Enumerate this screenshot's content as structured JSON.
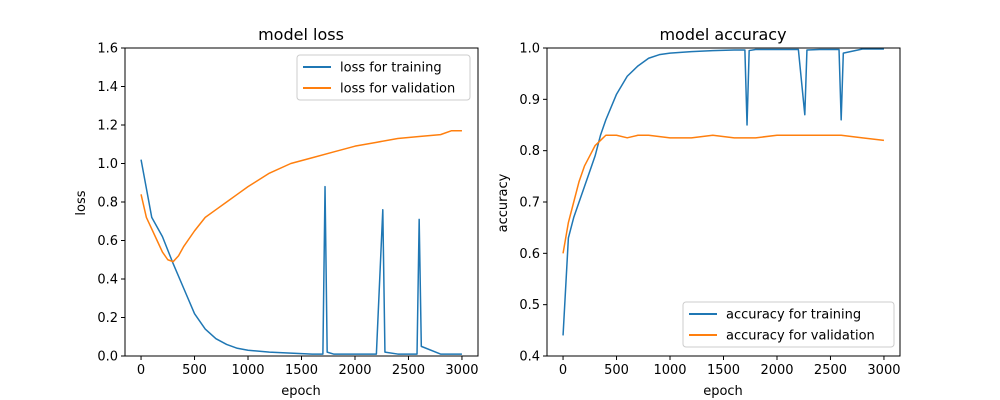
{
  "chart_data": [
    {
      "type": "line",
      "title": "model loss",
      "xlabel": "epoch",
      "ylabel": "loss",
      "xlim": [
        -150,
        3150
      ],
      "ylim": [
        0.0,
        1.6
      ],
      "xticks": [
        0,
        500,
        1000,
        1500,
        2000,
        2500,
        3000
      ],
      "xtick_labels": [
        "0",
        "500",
        "1000",
        "1500",
        "2000",
        "2500",
        "3000"
      ],
      "yticks": [
        0.0,
        0.2,
        0.4,
        0.6,
        0.8,
        1.0,
        1.2,
        1.4,
        1.6
      ],
      "ytick_labels": [
        "0.0",
        "0.2",
        "0.4",
        "0.6",
        "0.8",
        "1.0",
        "1.2",
        "1.4",
        "1.6"
      ],
      "legend_position": "top-right",
      "grid": false,
      "series": [
        {
          "name": "loss for training",
          "color": "#1f77b4",
          "x": [
            0,
            100,
            200,
            300,
            400,
            500,
            600,
            700,
            800,
            900,
            1000,
            1200,
            1400,
            1600,
            1700,
            1720,
            1740,
            1800,
            2000,
            2200,
            2260,
            2280,
            2400,
            2580,
            2600,
            2620,
            2800,
            3000
          ],
          "y": [
            1.02,
            0.72,
            0.62,
            0.48,
            0.35,
            0.22,
            0.14,
            0.09,
            0.06,
            0.04,
            0.03,
            0.02,
            0.015,
            0.01,
            0.01,
            0.88,
            0.02,
            0.01,
            0.01,
            0.01,
            0.76,
            0.02,
            0.01,
            0.01,
            0.71,
            0.05,
            0.01,
            0.01
          ]
        },
        {
          "name": "loss for validation",
          "color": "#ff7f0e",
          "x": [
            0,
            50,
            100,
            150,
            200,
            250,
            300,
            350,
            400,
            500,
            600,
            700,
            800,
            900,
            1000,
            1200,
            1400,
            1600,
            1800,
            2000,
            2200,
            2400,
            2600,
            2800,
            2900,
            3000
          ],
          "y": [
            0.84,
            0.72,
            0.66,
            0.6,
            0.54,
            0.5,
            0.49,
            0.52,
            0.57,
            0.65,
            0.72,
            0.76,
            0.8,
            0.84,
            0.88,
            0.95,
            1.0,
            1.03,
            1.06,
            1.09,
            1.11,
            1.13,
            1.14,
            1.15,
            1.17,
            1.17
          ]
        }
      ]
    },
    {
      "type": "line",
      "title": "model accuracy",
      "xlabel": "epoch",
      "ylabel": "accuracy",
      "xlim": [
        -150,
        3150
      ],
      "ylim": [
        0.4,
        1.0
      ],
      "xticks": [
        0,
        500,
        1000,
        1500,
        2000,
        2500,
        3000
      ],
      "xtick_labels": [
        "0",
        "500",
        "1000",
        "1500",
        "2000",
        "2500",
        "3000"
      ],
      "yticks": [
        0.4,
        0.5,
        0.6,
        0.7,
        0.8,
        0.9,
        1.0
      ],
      "ytick_labels": [
        "0.4",
        "0.5",
        "0.6",
        "0.7",
        "0.8",
        "0.9",
        "1.0"
      ],
      "legend_position": "lower-right",
      "grid": false,
      "series": [
        {
          "name": "accuracy for training",
          "color": "#1f77b4",
          "x": [
            0,
            50,
            100,
            150,
            200,
            250,
            300,
            350,
            400,
            500,
            600,
            700,
            800,
            900,
            1000,
            1200,
            1400,
            1600,
            1700,
            1720,
            1740,
            1800,
            2000,
            2200,
            2260,
            2280,
            2400,
            2580,
            2600,
            2620,
            2800,
            3000
          ],
          "y": [
            0.44,
            0.63,
            0.67,
            0.7,
            0.73,
            0.76,
            0.79,
            0.83,
            0.86,
            0.91,
            0.945,
            0.965,
            0.98,
            0.987,
            0.99,
            0.993,
            0.995,
            0.996,
            0.996,
            0.85,
            0.995,
            0.997,
            0.997,
            0.997,
            0.87,
            0.996,
            0.997,
            0.997,
            0.86,
            0.99,
            0.998,
            0.998
          ]
        },
        {
          "name": "accuracy for validation",
          "color": "#ff7f0e",
          "x": [
            0,
            50,
            100,
            150,
            200,
            250,
            300,
            350,
            400,
            500,
            600,
            700,
            800,
            1000,
            1200,
            1400,
            1600,
            1800,
            2000,
            2200,
            2400,
            2600,
            2800,
            3000
          ],
          "y": [
            0.6,
            0.66,
            0.7,
            0.74,
            0.77,
            0.79,
            0.81,
            0.82,
            0.83,
            0.83,
            0.825,
            0.83,
            0.83,
            0.825,
            0.825,
            0.83,
            0.825,
            0.825,
            0.83,
            0.83,
            0.83,
            0.83,
            0.825,
            0.82
          ]
        }
      ]
    }
  ]
}
